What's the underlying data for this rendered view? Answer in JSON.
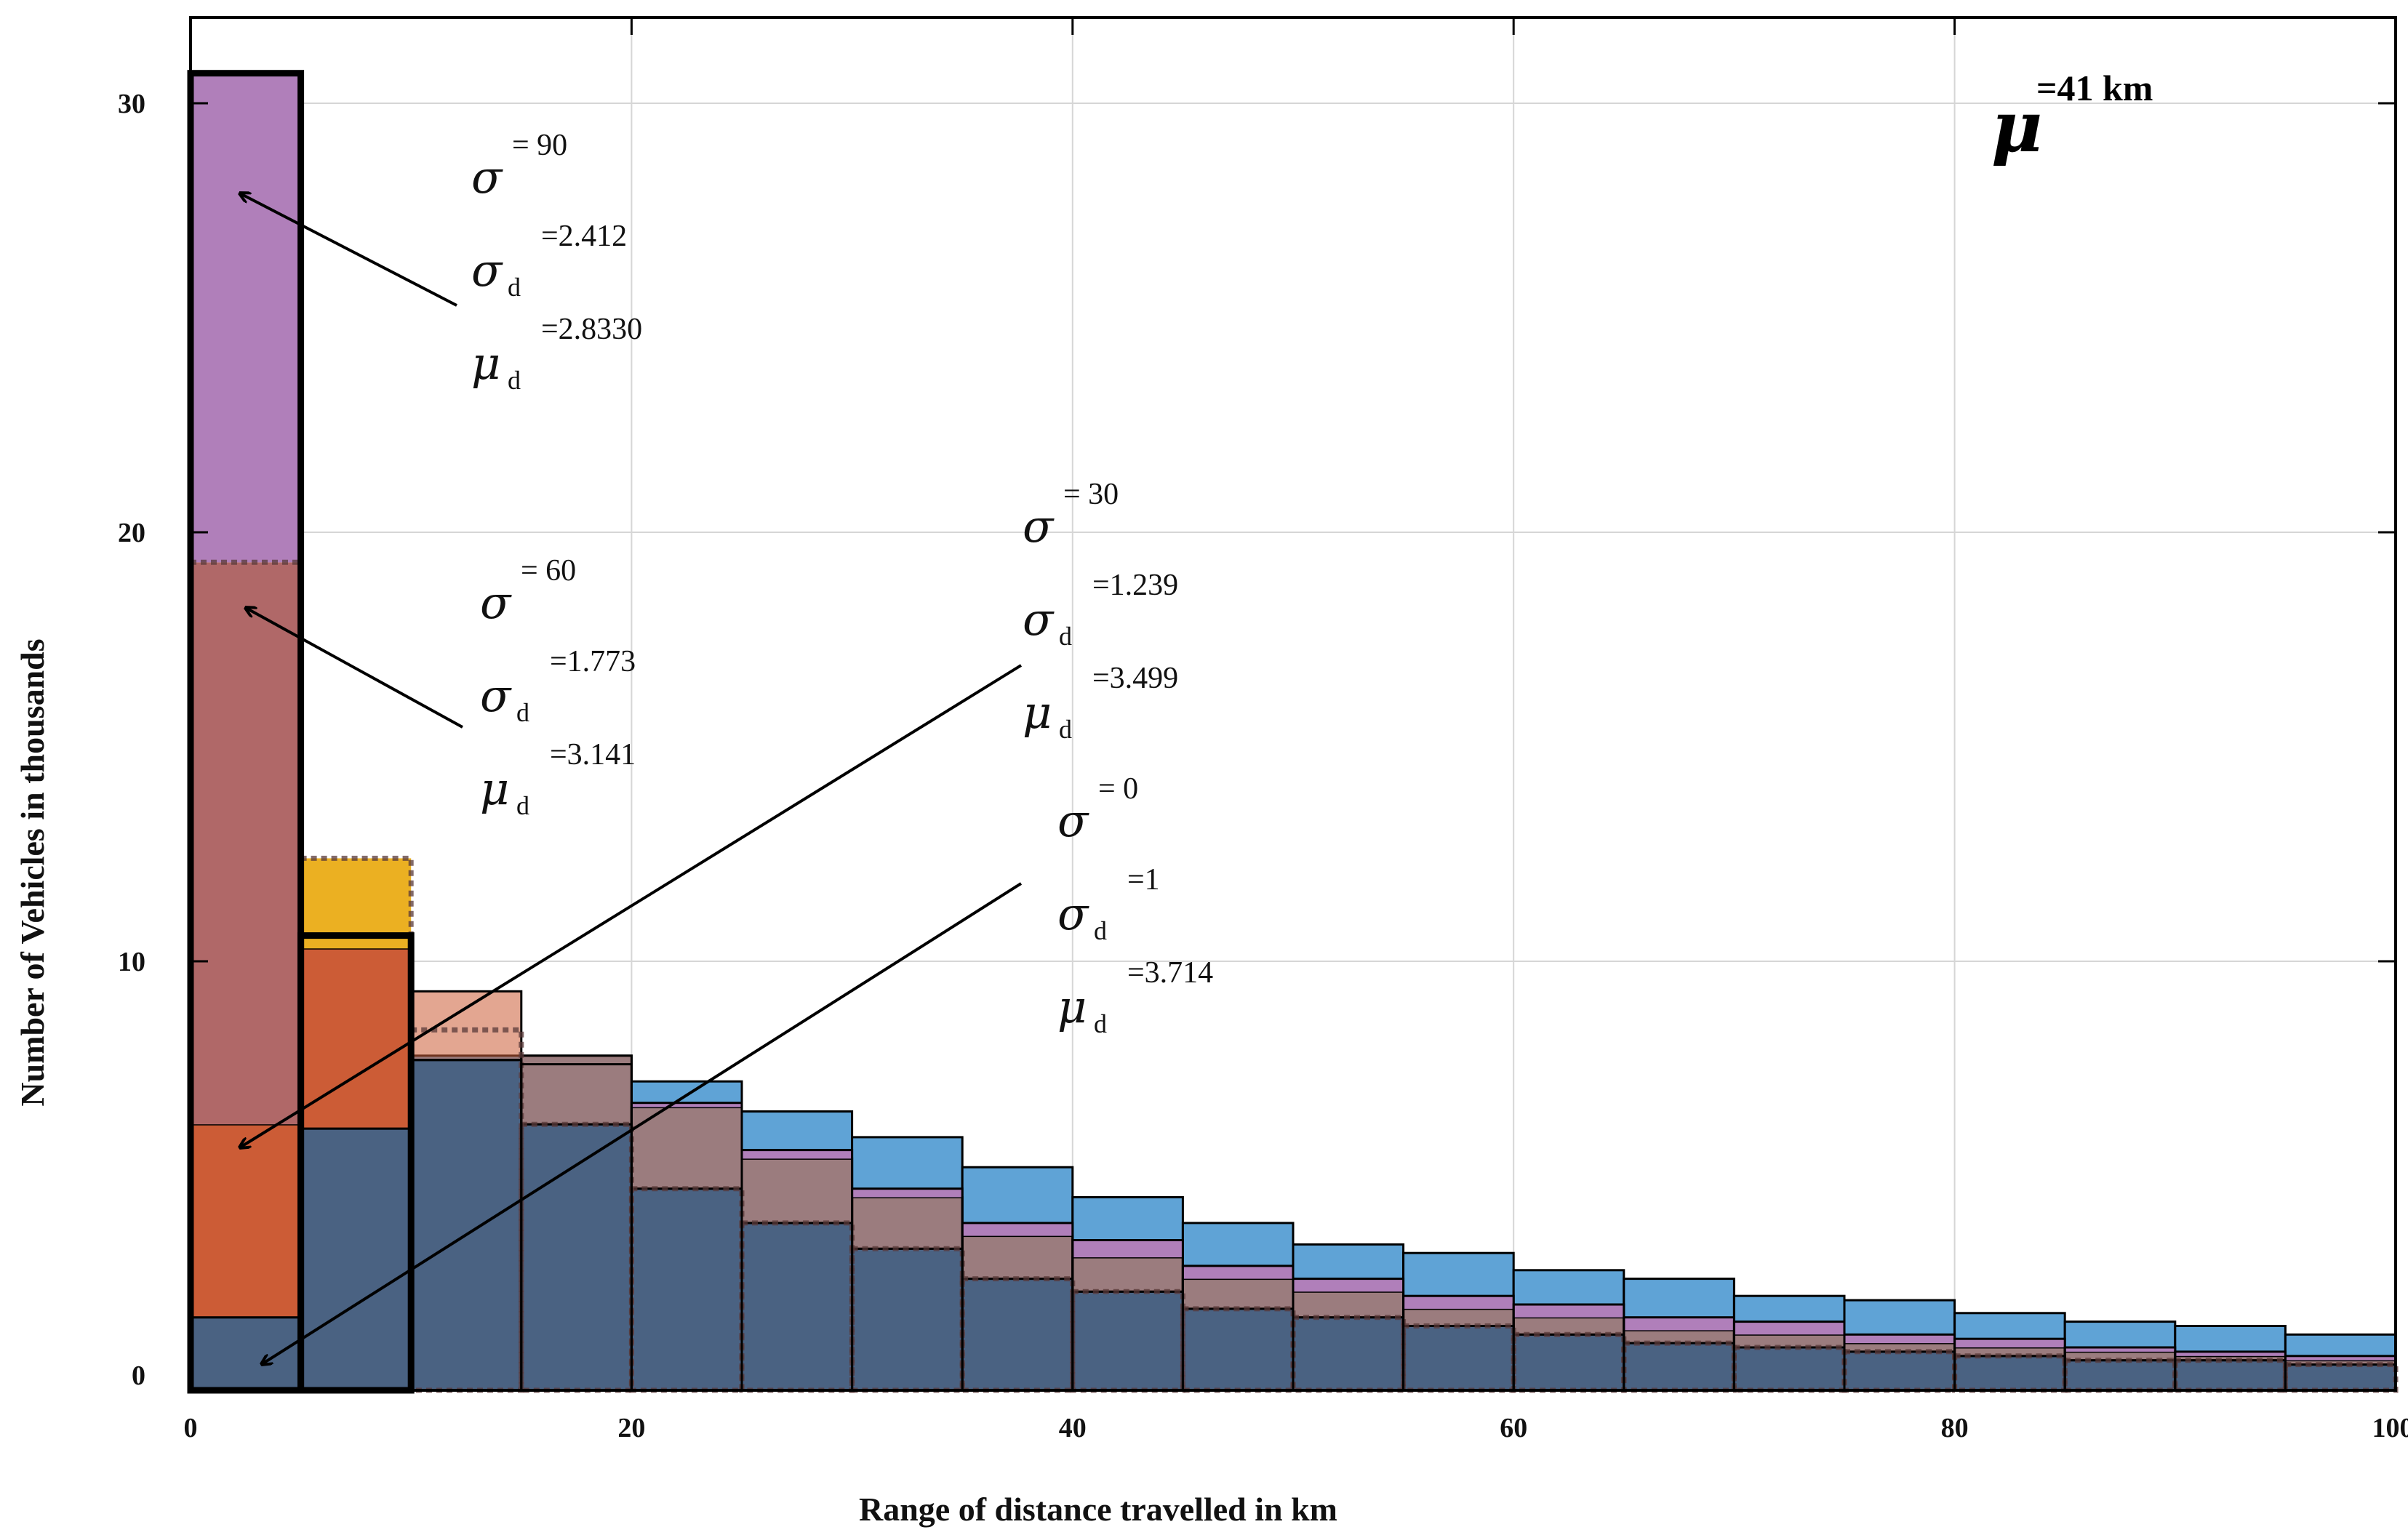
{
  "chart_data": {
    "type": "bar",
    "xlabel": "Range of distance travelled in km",
    "ylabel": "Number of Vehicles in thousands",
    "xlim": [
      0,
      100
    ],
    "ylim": [
      0,
      32
    ],
    "xticks": [
      "0",
      "20",
      "40",
      "60",
      "80",
      "100"
    ],
    "yticks": [
      "0",
      "10",
      "20",
      "30"
    ],
    "grid": true,
    "bin_edges": [
      0,
      5,
      10,
      15,
      20,
      25,
      30,
      35,
      40,
      45,
      50,
      55,
      60,
      65,
      70,
      75,
      80,
      85,
      90,
      95,
      100
    ],
    "series": [
      {
        "color": "#7E2F8E",
        "fill": "#B07FBA",
        "line": "solid",
        "values": [
          30.7,
          10.6,
          7.7,
          7.6,
          6.7,
          5.6,
          4.7,
          3.9,
          3.5,
          2.9,
          2.6,
          2.2,
          2.0,
          1.7,
          1.6,
          1.3,
          1.2,
          1.0,
          0.9,
          0.8
        ]
      },
      {
        "color": "#A2142F",
        "fill": "#B06868",
        "line": "dotted",
        "values": [
          19.3,
          12.4,
          8.4,
          6.2,
          4.7,
          3.9,
          3.3,
          2.6,
          2.3,
          1.9,
          1.7,
          1.5,
          1.3,
          1.1,
          1.0,
          0.9,
          0.8,
          0.7,
          0.7,
          0.6
        ]
      },
      {
        "color": "#D95319",
        "fill": "#CC5C36",
        "line": "solid",
        "values": [
          6.2,
          10.3,
          9.3,
          7.8,
          6.6,
          5.4,
          4.5,
          3.6,
          3.1,
          2.6,
          2.3,
          1.9,
          1.7,
          1.4,
          1.3,
          1.1,
          1.0,
          0.9,
          0.8,
          0.7
        ]
      },
      {
        "color": "#0072BD",
        "fill": "#4A6B8C",
        "line": "solid",
        "values": [
          1.7,
          6.1,
          7.8,
          7.8,
          7.2,
          6.5,
          5.9,
          5.2,
          4.5,
          3.9,
          3.4,
          3.2,
          2.8,
          2.6,
          2.2,
          2.1,
          1.8,
          1.6,
          1.5,
          1.3
        ]
      }
    ],
    "annotations": [
      {
        "sigma": "= 90",
        "sigma_d": "=2.412",
        "mu_d": "=2.8330"
      },
      {
        "sigma": "= 60",
        "sigma_d": "=1.773",
        "mu_d": "=3.141"
      },
      {
        "sigma": "= 30",
        "sigma_d": "=1.239",
        "mu_d": "=3.499"
      },
      {
        "sigma": "= 0",
        "sigma_d": "=1",
        "mu_d": "=3.714"
      }
    ],
    "mu_label": "=41 km"
  },
  "symbols": {
    "sigma": "σ",
    "mu": "μ",
    "d": "d"
  }
}
